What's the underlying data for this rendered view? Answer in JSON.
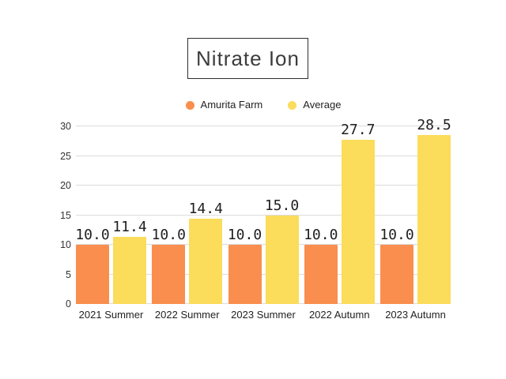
{
  "page": {
    "background": "#ffffff"
  },
  "title": {
    "text": "Nitrate Ion"
  },
  "colors": {
    "grid": "#dcdcdc",
    "axis_text": "#333333",
    "label_text": "#1f1f1f",
    "title_border": "#2f2f2f"
  },
  "chart_data": {
    "type": "bar",
    "title": "Nitrate Ion",
    "categories": [
      "2021 Summer",
      "2022 Summer",
      "2023 Summer",
      "2022 Autumn",
      "2023 Autumn"
    ],
    "series": [
      {
        "name": "Amurita Farm",
        "color": "#F98E4E",
        "values": [
          10.0,
          10.0,
          10.0,
          10.0,
          10.0
        ]
      },
      {
        "name": "Average",
        "color": "#FBDC5B",
        "values": [
          11.4,
          14.4,
          15.0,
          27.7,
          28.5
        ]
      }
    ],
    "data_labels": [
      "10.0",
      "11.4",
      "10.0",
      "14.4",
      "10.0",
      "15.0",
      "10.0",
      "27.7",
      "10.0",
      "28.5"
    ],
    "xlabel": "",
    "ylabel": "",
    "ylim": [
      0,
      30
    ],
    "yticks": [
      0,
      5,
      10,
      15,
      20,
      25,
      30
    ],
    "grid": true,
    "legend_position": "top"
  }
}
